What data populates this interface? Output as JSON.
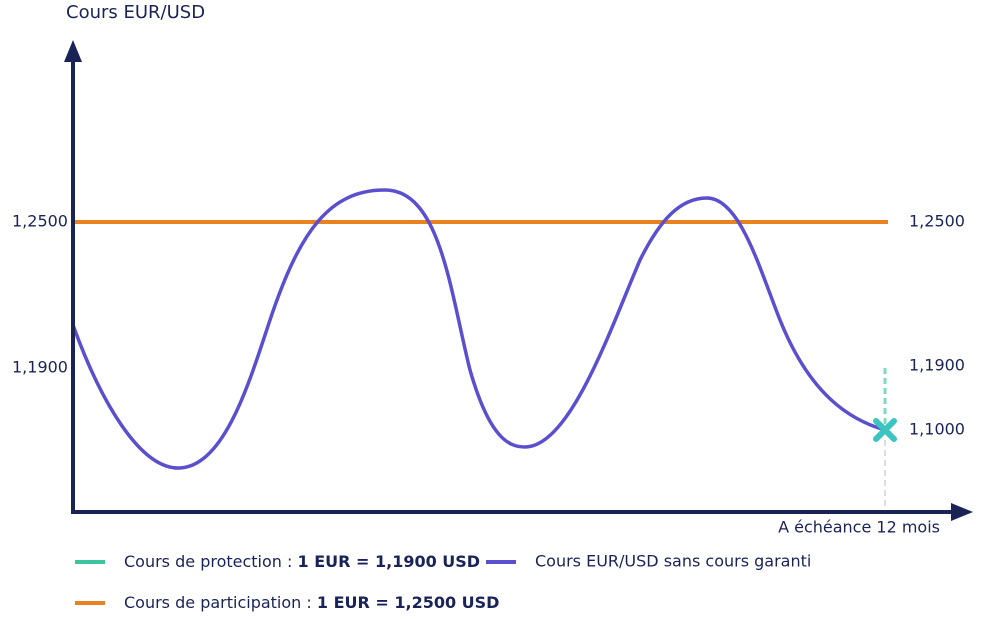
{
  "axis_title": "Cours EUR/USD",
  "x_label": "A échéance 12 mois",
  "levels": {
    "participation": {
      "left": "1,2500",
      "right": "1,2500"
    },
    "protection": {
      "left": "1,1900",
      "right": "1,1900"
    },
    "final": "1,1000"
  },
  "legend": [
    {
      "text": "Cours de protection : ",
      "bold": "1 EUR = 1,1900 USD"
    },
    {
      "text": "Cours EUR/USD sans cours garanti"
    },
    {
      "text": "Cours de participation : ",
      "bold": "1 EUR = 1,2500 USD"
    }
  ]
}
